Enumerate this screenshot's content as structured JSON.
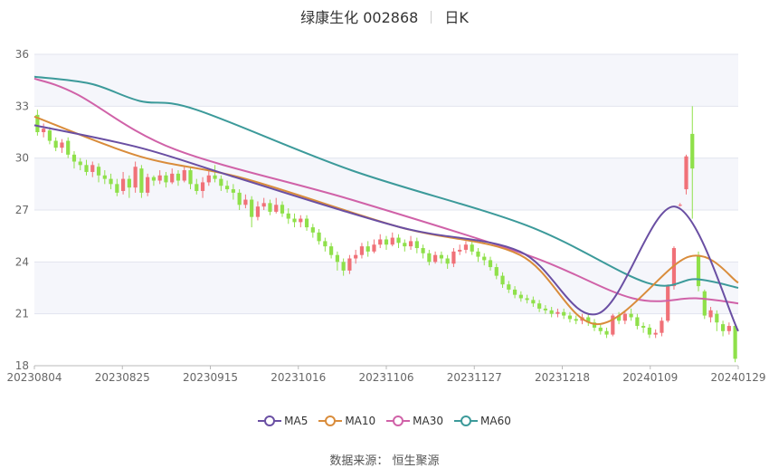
{
  "header": {
    "title": "绿康生化 002868",
    "period": "日K"
  },
  "source_text": "数据来源： 恒生聚源",
  "chart_data": {
    "type": "candlestick",
    "title": "绿康生化 002868",
    "y_ticks": [
      18,
      21,
      24,
      27,
      30,
      33,
      36
    ],
    "ylim": [
      18,
      36
    ],
    "x_tick_labels": [
      "20230804",
      "20230825",
      "20230915",
      "20231016",
      "20231106",
      "20231127",
      "20231218",
      "20240109",
      "20240129"
    ],
    "legend": [
      {
        "name": "MA5",
        "color": "#6a4fa3"
      },
      {
        "name": "MA10",
        "color": "#d98c3b"
      },
      {
        "name": "MA30",
        "color": "#d062a8"
      },
      {
        "name": "MA60",
        "color": "#3c9a9a"
      }
    ],
    "colors": {
      "up": "#f07178",
      "down": "#8fe04a"
    },
    "candles": [
      [
        32.5,
        31.5,
        32.8,
        31.3
      ],
      [
        31.5,
        31.7,
        32.0,
        31.2
      ],
      [
        31.6,
        31.0,
        31.8,
        30.8
      ],
      [
        31.0,
        30.6,
        31.2,
        30.4
      ],
      [
        30.6,
        30.9,
        31.1,
        30.3
      ],
      [
        31.0,
        30.2,
        31.2,
        30.0
      ],
      [
        30.2,
        29.8,
        30.4,
        29.4
      ],
      [
        29.8,
        29.6,
        30.0,
        29.3
      ],
      [
        29.6,
        29.2,
        29.9,
        29.0
      ],
      [
        29.2,
        29.6,
        29.8,
        28.9
      ],
      [
        29.5,
        29.0,
        29.7,
        28.6
      ],
      [
        29.0,
        28.8,
        29.3,
        28.5
      ],
      [
        28.8,
        28.5,
        29.1,
        28.2
      ],
      [
        28.5,
        28.0,
        28.8,
        27.8
      ],
      [
        28.1,
        28.8,
        29.2,
        27.9
      ],
      [
        28.8,
        28.3,
        29.0,
        27.7
      ],
      [
        28.3,
        29.5,
        29.8,
        28.0
      ],
      [
        29.4,
        28.0,
        29.6,
        27.7
      ],
      [
        28.0,
        28.9,
        29.1,
        27.8
      ],
      [
        28.9,
        28.7,
        29.0,
        28.4
      ],
      [
        28.7,
        29.0,
        29.3,
        28.5
      ],
      [
        29.0,
        28.6,
        29.2,
        28.3
      ],
      [
        28.6,
        29.1,
        29.4,
        28.5
      ],
      [
        29.1,
        28.7,
        29.3,
        28.4
      ],
      [
        28.7,
        29.3,
        29.5,
        28.6
      ],
      [
        29.3,
        28.5,
        29.5,
        28.2
      ],
      [
        28.5,
        28.1,
        28.8,
        27.9
      ],
      [
        28.1,
        28.6,
        28.9,
        27.7
      ],
      [
        28.6,
        29.0,
        29.4,
        28.4
      ],
      [
        29.0,
        28.8,
        29.6,
        28.6
      ],
      [
        28.8,
        28.4,
        29.0,
        28.1
      ],
      [
        28.4,
        28.2,
        28.7,
        28.0
      ],
      [
        28.2,
        28.0,
        28.5,
        27.6
      ],
      [
        28.0,
        27.3,
        28.2,
        27.0
      ],
      [
        27.3,
        27.6,
        27.9,
        27.1
      ],
      [
        27.6,
        26.6,
        27.8,
        26.0
      ],
      [
        26.6,
        27.2,
        27.5,
        26.4
      ],
      [
        27.2,
        27.4,
        27.7,
        27.0
      ],
      [
        27.4,
        26.9,
        27.6,
        26.7
      ],
      [
        26.9,
        27.3,
        27.7,
        26.8
      ],
      [
        27.3,
        26.8,
        27.5,
        26.6
      ],
      [
        26.8,
        26.5,
        27.1,
        26.2
      ],
      [
        26.5,
        26.3,
        26.8,
        26.0
      ],
      [
        26.3,
        26.5,
        26.7,
        26.0
      ],
      [
        26.5,
        26.0,
        26.7,
        25.8
      ],
      [
        26.0,
        25.7,
        26.2,
        25.4
      ],
      [
        25.7,
        25.2,
        25.9,
        25.0
      ],
      [
        25.2,
        24.9,
        25.4,
        24.6
      ],
      [
        24.9,
        24.4,
        25.1,
        24.2
      ],
      [
        24.4,
        24.0,
        24.6,
        23.5
      ],
      [
        24.0,
        23.5,
        24.2,
        23.2
      ],
      [
        23.5,
        24.2,
        24.4,
        23.3
      ],
      [
        24.2,
        24.4,
        24.7,
        23.9
      ],
      [
        24.4,
        24.9,
        25.1,
        24.2
      ],
      [
        24.9,
        24.6,
        25.2,
        24.3
      ],
      [
        24.6,
        25.0,
        25.3,
        24.5
      ],
      [
        25.0,
        25.3,
        25.6,
        24.8
      ],
      [
        25.3,
        25.0,
        25.5,
        24.7
      ],
      [
        25.0,
        25.4,
        25.7,
        24.9
      ],
      [
        25.4,
        25.1,
        25.6,
        24.8
      ],
      [
        25.1,
        24.9,
        25.3,
        24.6
      ],
      [
        24.9,
        25.2,
        25.5,
        24.7
      ],
      [
        25.2,
        24.8,
        25.4,
        24.5
      ],
      [
        24.8,
        24.5,
        25.0,
        24.2
      ],
      [
        24.5,
        24.0,
        24.7,
        23.8
      ],
      [
        24.0,
        24.4,
        24.6,
        23.9
      ],
      [
        24.4,
        24.2,
        24.6,
        23.9
      ],
      [
        24.2,
        23.9,
        24.4,
        23.6
      ],
      [
        23.9,
        24.6,
        24.8,
        23.7
      ],
      [
        24.6,
        24.7,
        25.0,
        24.4
      ],
      [
        24.7,
        25.0,
        25.2,
        24.5
      ],
      [
        25.0,
        24.6,
        25.2,
        24.4
      ],
      [
        24.6,
        24.3,
        24.8,
        24.0
      ],
      [
        24.3,
        24.1,
        24.5,
        23.8
      ],
      [
        24.1,
        23.7,
        24.3,
        23.5
      ],
      [
        23.7,
        23.2,
        23.9,
        23.0
      ],
      [
        23.2,
        22.7,
        23.4,
        22.5
      ],
      [
        22.7,
        22.4,
        22.9,
        22.2
      ],
      [
        22.4,
        22.1,
        22.6,
        21.9
      ],
      [
        22.1,
        21.9,
        22.3,
        21.7
      ],
      [
        21.9,
        21.8,
        22.1,
        21.6
      ],
      [
        21.8,
        21.6,
        22.0,
        21.4
      ],
      [
        21.6,
        21.3,
        21.8,
        21.1
      ],
      [
        21.3,
        21.2,
        21.5,
        21.0
      ],
      [
        21.2,
        21.0,
        21.4,
        20.8
      ],
      [
        21.0,
        21.1,
        21.3,
        20.8
      ],
      [
        21.1,
        20.9,
        21.3,
        20.7
      ],
      [
        20.9,
        20.7,
        21.1,
        20.5
      ],
      [
        20.7,
        20.6,
        20.9,
        20.4
      ],
      [
        20.6,
        20.8,
        21.0,
        20.4
      ],
      [
        20.8,
        20.5,
        21.0,
        20.3
      ],
      [
        20.5,
        20.2,
        20.7,
        20.0
      ],
      [
        20.2,
        20.0,
        20.4,
        19.8
      ],
      [
        20.0,
        19.8,
        20.2,
        19.6
      ],
      [
        19.8,
        20.9,
        21.0,
        19.7
      ],
      [
        20.9,
        20.6,
        21.1,
        20.4
      ],
      [
        20.6,
        21.0,
        21.2,
        20.4
      ],
      [
        21.0,
        20.8,
        21.3,
        20.6
      ],
      [
        20.8,
        20.3,
        21.0,
        20.1
      ],
      [
        20.3,
        20.2,
        20.5,
        19.9
      ],
      [
        20.2,
        19.8,
        20.4,
        19.6
      ],
      [
        19.8,
        19.9,
        20.1,
        19.6
      ],
      [
        19.9,
        20.6,
        20.8,
        19.7
      ],
      [
        20.6,
        22.6,
        22.7,
        20.5
      ],
      [
        22.6,
        24.8,
        24.9,
        22.4
      ],
      [
        27.3,
        27.3,
        27.4,
        27.2
      ],
      [
        28.2,
        30.1,
        30.2,
        27.9
      ],
      [
        31.4,
        29.4,
        33.0,
        26.5
      ],
      [
        24.4,
        22.6,
        24.6,
        22.3
      ],
      [
        22.3,
        20.9,
        22.4,
        20.7
      ],
      [
        20.8,
        21.2,
        21.4,
        20.5
      ],
      [
        21.0,
        20.5,
        21.2,
        20.0
      ],
      [
        20.4,
        20.0,
        20.6,
        19.7
      ],
      [
        20.0,
        20.3,
        20.5,
        19.8
      ],
      [
        20.3,
        18.4,
        20.4,
        18.2
      ]
    ],
    "ma5": [
      [
        0,
        31.9
      ],
      [
        0.15,
        30.6
      ],
      [
        0.285,
        28.9
      ],
      [
        0.52,
        26.0
      ],
      [
        0.69,
        24.6
      ],
      [
        0.8,
        21.0
      ],
      [
        0.91,
        27.2
      ],
      [
        1.0,
        20.0
      ]
    ],
    "ma10": [
      [
        0,
        32.4
      ],
      [
        0.15,
        30.1
      ],
      [
        0.3,
        28.8
      ],
      [
        0.52,
        26.0
      ],
      [
        0.69,
        24.4
      ],
      [
        0.8,
        20.4
      ],
      [
        0.93,
        24.3
      ],
      [
        1.0,
        22.8
      ]
    ],
    "ma30": [
      [
        0,
        34.6
      ],
      [
        0.06,
        33.7
      ],
      [
        0.2,
        30.5
      ],
      [
        0.45,
        27.6
      ],
      [
        0.7,
        24.4
      ],
      [
        0.85,
        21.9
      ],
      [
        0.94,
        21.9
      ],
      [
        1.0,
        21.6
      ]
    ],
    "ma60": [
      [
        0,
        34.7
      ],
      [
        0.08,
        34.3
      ],
      [
        0.15,
        33.3
      ],
      [
        0.23,
        32.8
      ],
      [
        0.45,
        29.3
      ],
      [
        0.7,
        26.1
      ],
      [
        0.87,
        22.8
      ],
      [
        0.94,
        23.0
      ],
      [
        1.0,
        22.5
      ]
    ]
  }
}
